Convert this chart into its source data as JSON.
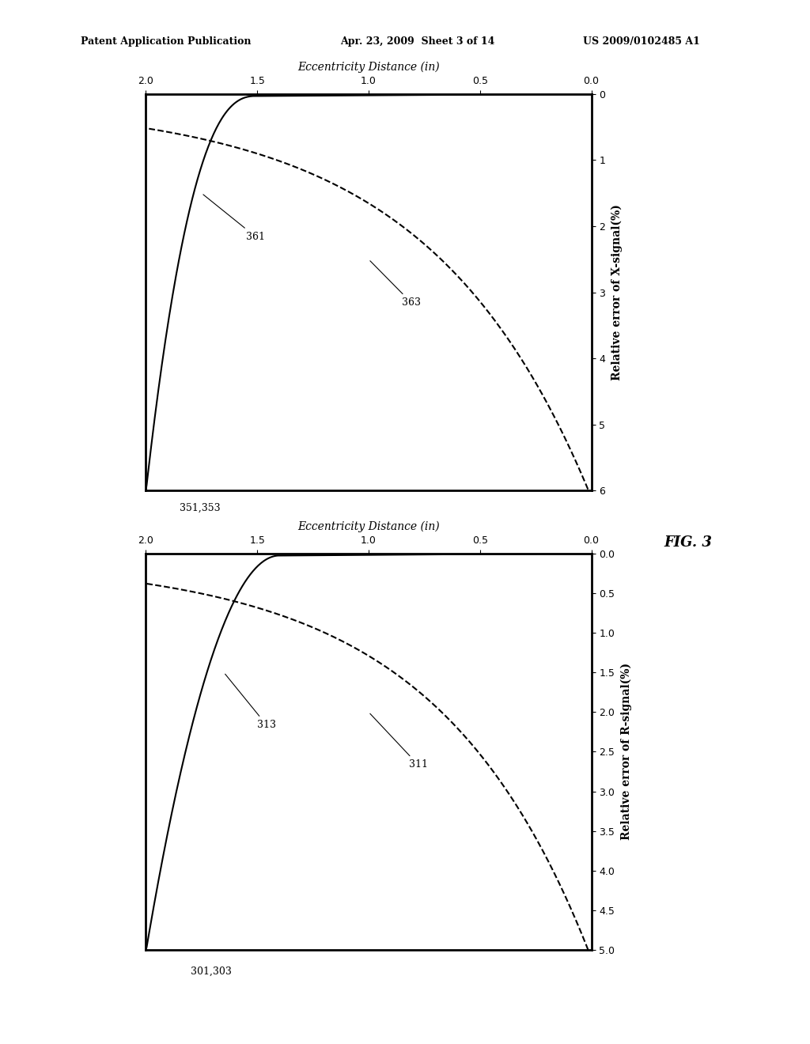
{
  "header_left": "Patent Application Publication",
  "header_center": "Apr. 23, 2009  Sheet 3 of 14",
  "header_right": "US 2009/0102485 A1",
  "fig_label": "FIG. 3",
  "top_plot": {
    "ylabel": "Relative error of X-signal(%)",
    "xlabel": "Eccentricity Distance (in)",
    "xlim": [
      0,
      2
    ],
    "ylim": [
      0,
      6
    ],
    "xticks": [
      0,
      0.5,
      1,
      1.5,
      2
    ],
    "yticks": [
      0,
      1,
      2,
      3,
      4,
      5,
      6
    ],
    "solid_label": "361",
    "dashed_label": "363",
    "ref_label": "351,353"
  },
  "bottom_plot": {
    "ylabel": "Relative error of R-signal(%)",
    "xlabel": "Eccentricity Distance (in)",
    "xlim": [
      0,
      2
    ],
    "ylim": [
      0,
      5
    ],
    "xticks": [
      0,
      0.5,
      1,
      1.5,
      2
    ],
    "yticks": [
      0,
      0.5,
      1,
      1.5,
      2,
      2.5,
      3,
      3.5,
      4,
      4.5,
      5
    ],
    "solid_label": "313",
    "dashed_label": "311",
    "ref_label": "301,303"
  },
  "background_color": "#ffffff",
  "line_color": "#000000"
}
